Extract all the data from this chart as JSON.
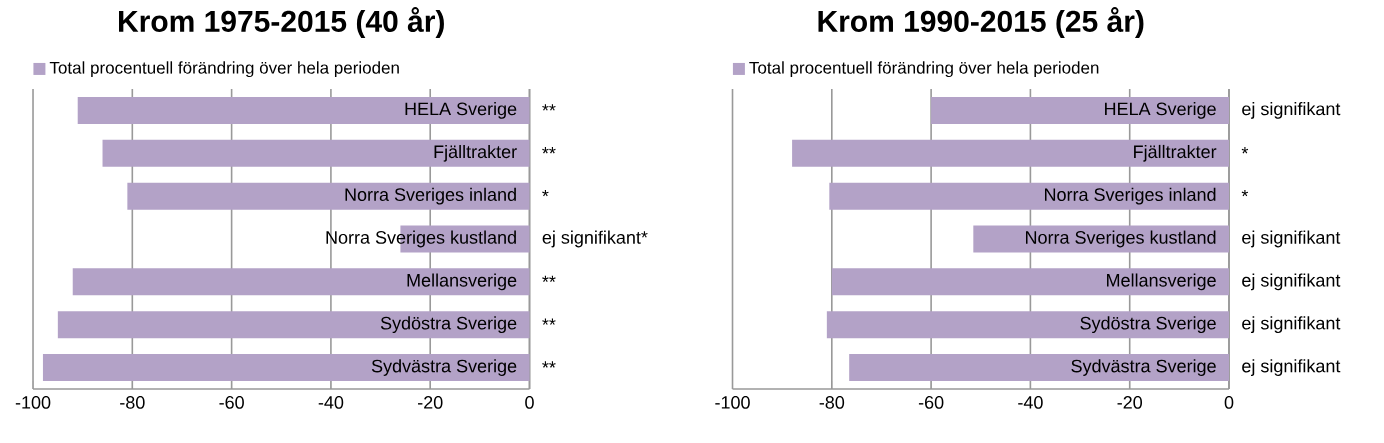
{
  "chart_data": [
    {
      "type": "bar",
      "orientation": "horizontal",
      "title": "Krom 1975-2015 (40 år)",
      "categories": [
        "HELA Sverige",
        "Fjälltrakter",
        "Norra Sveriges inland",
        "Norra Sveriges kustland",
        "Mellansverige",
        "Sydöstra Sverige",
        "Sydvästra Sverige"
      ],
      "series": [
        {
          "name": "Total procentuell förändring över hela perioden",
          "color": "#b3a2c7",
          "values": [
            -91,
            -86,
            -81,
            -26,
            -92,
            -95,
            -98
          ]
        }
      ],
      "xlim": [
        -100,
        0
      ],
      "xticks": [
        -100,
        -80,
        -60,
        -40,
        -20,
        0
      ],
      "grid": "x",
      "legend": "top left",
      "annotations": [
        "**",
        "**",
        "*",
        "ej signifikant*",
        "**",
        "**",
        "**"
      ]
    },
    {
      "type": "bar",
      "orientation": "horizontal",
      "title": "Krom 1990-2015 (25 år)",
      "categories": [
        "HELA Sverige",
        "Fjälltrakter",
        "Norra Sveriges inland",
        "Norra Sveriges kustland",
        "Mellansverige",
        "Sydöstra Sverige",
        "Sydvästra Sverige"
      ],
      "series": [
        {
          "name": "Total procentuell förändring över hela perioden",
          "color": "#b3a2c7",
          "values": [
            -60,
            -88,
            -80.5,
            -51.5,
            -80,
            -81,
            -76.5
          ]
        }
      ],
      "xlim": [
        -100,
        0
      ],
      "xticks": [
        -100,
        -80,
        -60,
        -40,
        -20,
        0
      ],
      "grid": "x",
      "legend": "top left",
      "annotations": [
        "ej signifikant",
        "*",
        "*",
        "ej signifikant",
        "ej signifikant",
        "ej signifikant",
        "ej signifikant"
      ]
    }
  ]
}
